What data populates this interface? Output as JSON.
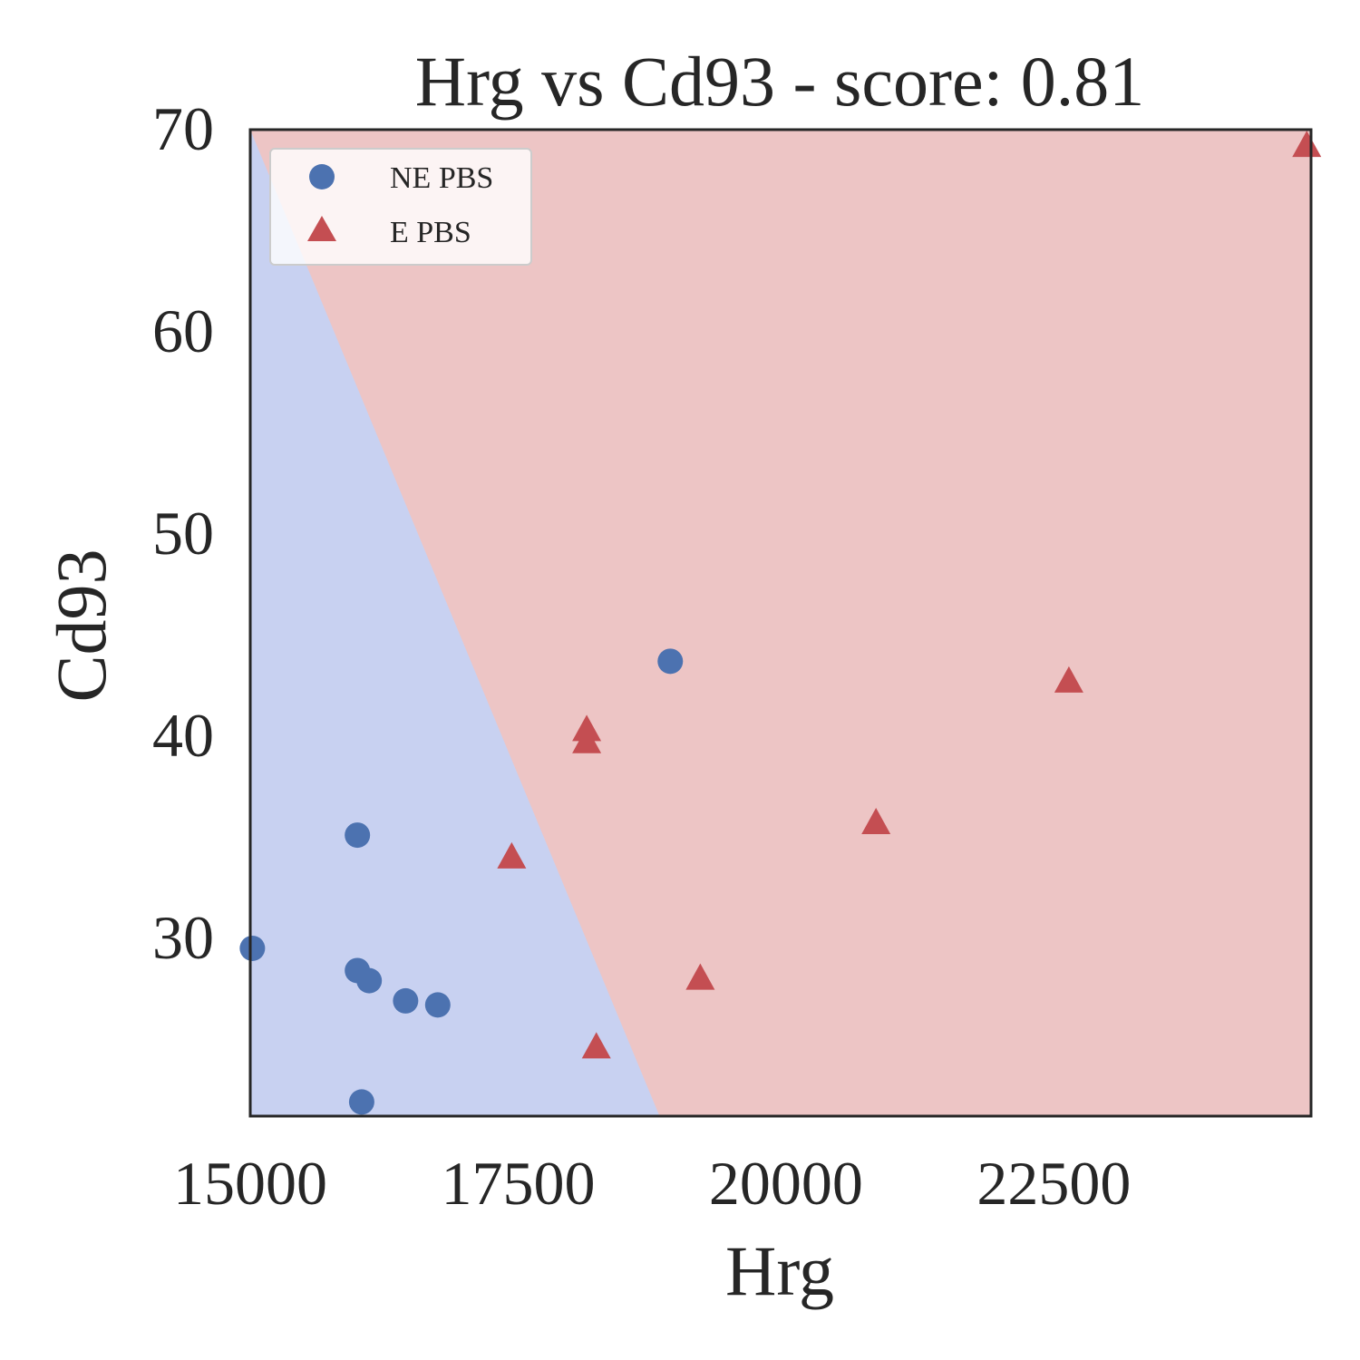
{
  "chart_data": {
    "type": "scatter",
    "title": "Hrg vs Cd93 - score: 0.81",
    "xlabel": "Hrg",
    "ylabel": "Cd93",
    "xlim": [
      15000,
      24900
    ],
    "ylim": [
      21.2,
      70
    ],
    "xticks": [
      15000,
      17500,
      20000,
      22500
    ],
    "yticks": [
      30,
      40,
      50,
      60,
      70
    ],
    "xtick_labels": [
      "15000",
      "17500",
      "20000",
      "22500"
    ],
    "ytick_labels": [
      "30",
      "40",
      "50",
      "60",
      "70"
    ],
    "legend": "top-left",
    "grid": false,
    "decision_boundary": {
      "points": [
        [
          15000,
          70
        ],
        [
          18820,
          21.2
        ]
      ],
      "left_region_class": "NE PBS",
      "right_region_class": "E PBS"
    },
    "series": [
      {
        "name": "NE PBS",
        "marker": "circle",
        "color": "#4c72b0",
        "region_color": "#c8d1f1",
        "points": [
          [
            15020,
            29.5
          ],
          [
            16000,
            35.1
          ],
          [
            16000,
            28.4
          ],
          [
            16110,
            27.9
          ],
          [
            16450,
            26.9
          ],
          [
            16750,
            26.7
          ],
          [
            16040,
            21.9
          ],
          [
            18920,
            43.7
          ]
        ]
      },
      {
        "name": "E PBS",
        "marker": "triangle",
        "color": "#c44e52",
        "region_color": "#edc5c5",
        "points": [
          [
            17440,
            33.9
          ],
          [
            18140,
            40.2
          ],
          [
            18140,
            39.6
          ],
          [
            18230,
            24.5
          ],
          [
            19200,
            27.9
          ],
          [
            20840,
            35.6
          ],
          [
            22640,
            42.6
          ],
          [
            24860,
            69.1
          ]
        ]
      }
    ]
  }
}
